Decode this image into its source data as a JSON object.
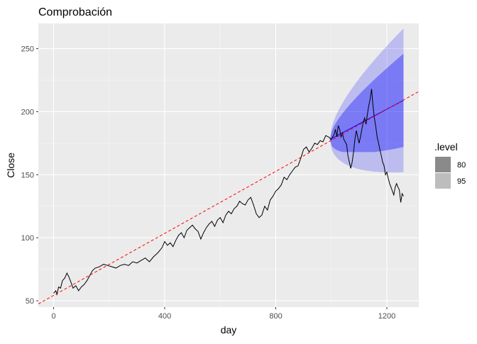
{
  "chart_data": {
    "type": "line",
    "title": "Comprobación",
    "xlabel": "day",
    "ylabel": "Close",
    "xlim": [
      -55,
      1315
    ],
    "ylim": [
      45,
      270
    ],
    "x_ticks": [
      0,
      400,
      800,
      1200
    ],
    "x_tick_labels": [
      "0",
      "400",
      "800",
      "1200"
    ],
    "y_ticks": [
      50,
      100,
      150,
      200,
      250
    ],
    "y_tick_labels": [
      "50",
      "100",
      "150",
      "200",
      "250"
    ],
    "grid": true,
    "legend": {
      "title": ".level",
      "position": "right",
      "entries": [
        {
          "label": "80",
          "color": "#8a8a8a"
        },
        {
          "label": "95",
          "color": "#bdbdbd"
        }
      ]
    },
    "series": [
      {
        "type": "line",
        "color": "#000000",
        "points": [
          [
            0,
            56
          ],
          [
            8,
            58
          ],
          [
            12,
            55
          ],
          [
            18,
            61
          ],
          [
            25,
            60
          ],
          [
            32,
            66
          ],
          [
            40,
            68
          ],
          [
            48,
            72
          ],
          [
            55,
            69
          ],
          [
            62,
            65
          ],
          [
            70,
            60
          ],
          [
            80,
            62
          ],
          [
            90,
            58
          ],
          [
            100,
            61
          ],
          [
            110,
            63
          ],
          [
            120,
            66
          ],
          [
            130,
            70
          ],
          [
            140,
            74
          ],
          [
            150,
            76
          ],
          [
            165,
            77
          ],
          [
            180,
            79
          ],
          [
            195,
            78
          ],
          [
            210,
            77
          ],
          [
            225,
            76
          ],
          [
            240,
            78
          ],
          [
            255,
            79
          ],
          [
            270,
            78
          ],
          [
            285,
            81
          ],
          [
            300,
            80
          ],
          [
            315,
            82
          ],
          [
            330,
            84
          ],
          [
            345,
            81
          ],
          [
            360,
            85
          ],
          [
            375,
            88
          ],
          [
            390,
            92
          ],
          [
            400,
            97
          ],
          [
            410,
            94
          ],
          [
            420,
            96
          ],
          [
            430,
            93
          ],
          [
            440,
            98
          ],
          [
            450,
            102
          ],
          [
            460,
            104
          ],
          [
            470,
            100
          ],
          [
            480,
            106
          ],
          [
            490,
            108
          ],
          [
            500,
            110
          ],
          [
            510,
            107
          ],
          [
            520,
            105
          ],
          [
            530,
            99
          ],
          [
            540,
            104
          ],
          [
            550,
            108
          ],
          [
            560,
            111
          ],
          [
            570,
            113
          ],
          [
            580,
            109
          ],
          [
            590,
            114
          ],
          [
            600,
            116
          ],
          [
            610,
            112
          ],
          [
            620,
            118
          ],
          [
            630,
            121
          ],
          [
            640,
            119
          ],
          [
            650,
            123
          ],
          [
            660,
            125
          ],
          [
            670,
            129
          ],
          [
            680,
            127
          ],
          [
            690,
            126
          ],
          [
            700,
            130
          ],
          [
            710,
            132
          ],
          [
            720,
            126
          ],
          [
            730,
            119
          ],
          [
            740,
            116
          ],
          [
            750,
            118
          ],
          [
            760,
            125
          ],
          [
            770,
            122
          ],
          [
            780,
            130
          ],
          [
            790,
            133
          ],
          [
            800,
            137
          ],
          [
            810,
            139
          ],
          [
            820,
            142
          ],
          [
            830,
            148
          ],
          [
            840,
            146
          ],
          [
            850,
            150
          ],
          [
            860,
            153
          ],
          [
            870,
            156
          ],
          [
            880,
            157
          ],
          [
            890,
            163
          ],
          [
            900,
            170
          ],
          [
            910,
            172
          ],
          [
            920,
            168
          ],
          [
            930,
            171
          ],
          [
            940,
            175
          ],
          [
            950,
            174
          ],
          [
            960,
            177
          ],
          [
            970,
            176
          ],
          [
            980,
            181
          ],
          [
            990,
            180
          ],
          [
            1000,
            178
          ],
          [
            1010,
            182
          ],
          [
            1015,
            186
          ],
          [
            1020,
            180
          ],
          [
            1025,
            189
          ],
          [
            1030,
            186
          ],
          [
            1035,
            180
          ],
          [
            1040,
            183
          ],
          [
            1045,
            178
          ],
          [
            1050,
            176
          ],
          [
            1055,
            174
          ],
          [
            1060,
            165
          ],
          [
            1065,
            160
          ],
          [
            1070,
            155
          ],
          [
            1075,
            160
          ],
          [
            1080,
            168
          ],
          [
            1085,
            178
          ],
          [
            1090,
            185
          ],
          [
            1095,
            180
          ],
          [
            1100,
            175
          ],
          [
            1105,
            180
          ],
          [
            1110,
            186
          ],
          [
            1115,
            192
          ],
          [
            1120,
            195
          ],
          [
            1125,
            190
          ],
          [
            1130,
            198
          ],
          [
            1135,
            205
          ],
          [
            1140,
            210
          ],
          [
            1145,
            218
          ],
          [
            1150,
            205
          ],
          [
            1155,
            195
          ],
          [
            1160,
            188
          ],
          [
            1165,
            180
          ],
          [
            1170,
            175
          ],
          [
            1175,
            170
          ],
          [
            1180,
            165
          ],
          [
            1185,
            160
          ],
          [
            1190,
            157
          ],
          [
            1195,
            150
          ],
          [
            1200,
            152
          ],
          [
            1205,
            147
          ],
          [
            1210,
            143
          ],
          [
            1215,
            140
          ],
          [
            1220,
            137
          ],
          [
            1225,
            134
          ],
          [
            1230,
            140
          ],
          [
            1235,
            143
          ],
          [
            1240,
            140
          ],
          [
            1245,
            138
          ],
          [
            1250,
            128
          ],
          [
            1255,
            135
          ],
          [
            1260,
            133
          ]
        ]
      }
    ],
    "trend_line": {
      "color": "#ff0000",
      "style": "dashed",
      "x": [
        -55,
        1315
      ],
      "y": [
        47.5,
        216
      ]
    },
    "forecast": {
      "start_x": 995,
      "end_x": 1260,
      "color": "#0000ff",
      "band_80": {
        "upper_end": 246,
        "lower_end": 172,
        "lower_min": 168
      },
      "band_95": {
        "upper_end": 266,
        "lower_end": 152,
        "lower_min": 151
      },
      "mean_start": 178,
      "mean_end": 209
    }
  }
}
